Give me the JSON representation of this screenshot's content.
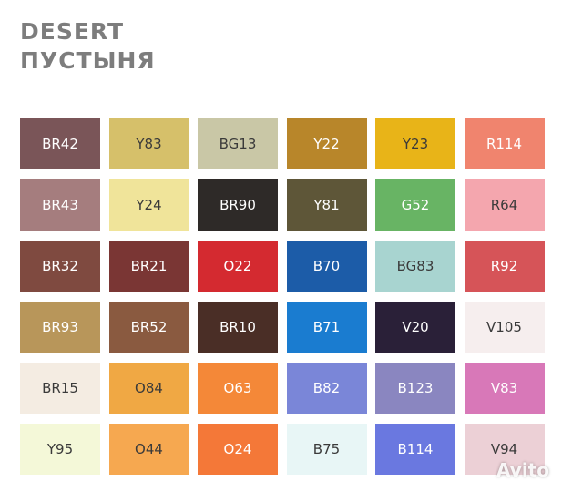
{
  "header": {
    "title": "DESERT",
    "subtitle": "ПУСТЫНЯ"
  },
  "swatches": [
    [
      {
        "label": "BR42",
        "color": "#7a5558"
      },
      {
        "label": "Y83",
        "color": "#d6c06a"
      },
      {
        "label": "BG13",
        "color": "#c9c7a6"
      },
      {
        "label": "Y22",
        "color": "#b8862a"
      },
      {
        "label": "Y23",
        "color": "#e8b418"
      },
      {
        "label": "R114",
        "color": "#f0846e"
      }
    ],
    [
      {
        "label": "BR43",
        "color": "#a57d7e"
      },
      {
        "label": "Y24",
        "color": "#f0e49a"
      },
      {
        "label": "BR90",
        "color": "#2e2a28"
      },
      {
        "label": "Y81",
        "color": "#5e5638"
      },
      {
        "label": "G52",
        "color": "#68b464"
      },
      {
        "label": "R64",
        "color": "#f4a6ae"
      }
    ],
    [
      {
        "label": "BR32",
        "color": "#7f4a40"
      },
      {
        "label": "BR21",
        "color": "#7a3634"
      },
      {
        "label": "O22",
        "color": "#d42a30"
      },
      {
        "label": "B70",
        "color": "#1c5ca8"
      },
      {
        "label": "BG83",
        "color": "#a8d4d0"
      },
      {
        "label": "R92",
        "color": "#d65458"
      }
    ],
    [
      {
        "label": "BR93",
        "color": "#b8965a"
      },
      {
        "label": "BR52",
        "color": "#8a5a40"
      },
      {
        "label": "BR10",
        "color": "#4a2e26"
      },
      {
        "label": "B71",
        "color": "#1a7cd0"
      },
      {
        "label": "V20",
        "color": "#2a2038"
      },
      {
        "label": "V105",
        "color": "#f6eeee"
      }
    ],
    [
      {
        "label": "BR15",
        "color": "#f4ece2"
      },
      {
        "label": "O84",
        "color": "#f0a844"
      },
      {
        "label": "O63",
        "color": "#f48838"
      },
      {
        "label": "B82",
        "color": "#7a86d8"
      },
      {
        "label": "B123",
        "color": "#8a86c0"
      },
      {
        "label": "V83",
        "color": "#d878b8"
      }
    ],
    [
      {
        "label": "Y95",
        "color": "#f4f8d8"
      },
      {
        "label": "O44",
        "color": "#f6a850"
      },
      {
        "label": "O24",
        "color": "#f47838"
      },
      {
        "label": "B75",
        "color": "#e8f6f6"
      },
      {
        "label": "B114",
        "color": "#6a78e0"
      },
      {
        "label": "V94",
        "color": "#ecd0d6"
      }
    ]
  ],
  "watermark": "Avito"
}
